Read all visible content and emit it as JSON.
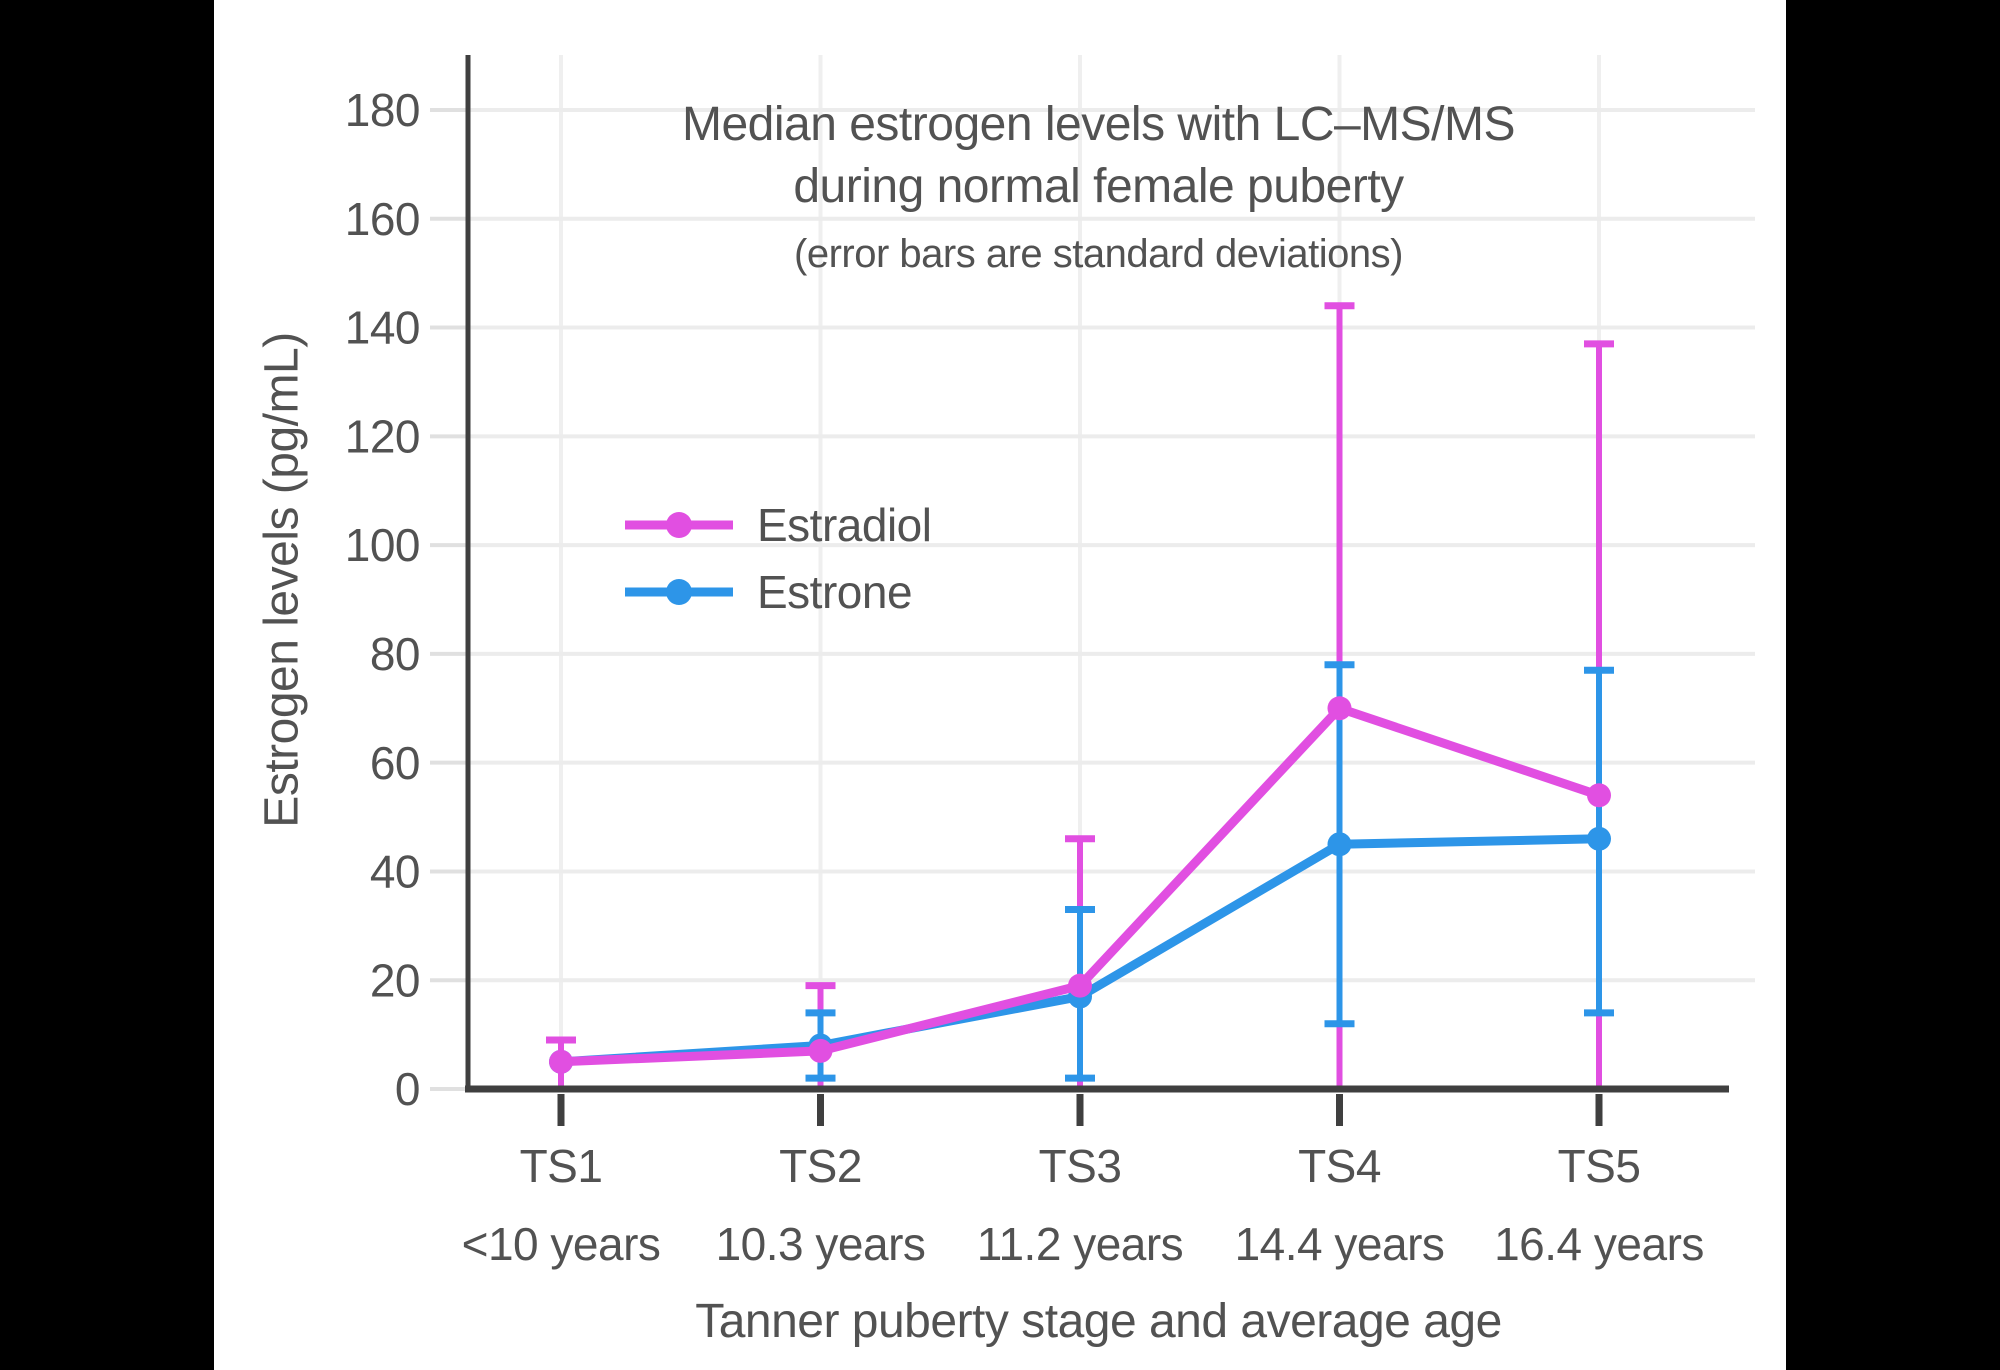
{
  "page": {
    "background": "#000000",
    "canvas_background": "#FFFFFF",
    "text_color": "#525252"
  },
  "chart_data": {
    "type": "line",
    "title_line1": "Median estrogen levels with LC–MS/MS",
    "title_line2": "during normal female puberty",
    "subtitle": "(error bars are standard deviations)",
    "xlabel": "Tanner puberty stage and average age",
    "ylabel": "Estrogen levels (pg/mL)",
    "ylim": [
      0,
      190
    ],
    "yticks": [
      0,
      20,
      40,
      60,
      80,
      100,
      120,
      140,
      160,
      180
    ],
    "grid": true,
    "legend_position": "inside upper-left",
    "categories": [
      "TS1",
      "TS2",
      "TS3",
      "TS4",
      "TS5"
    ],
    "category_sublabels": [
      "<10 years",
      "10.3 years",
      "11.2 years",
      "14.4 years",
      "16.4 years"
    ],
    "series": [
      {
        "name": "Estradiol",
        "color": "#E14FE1",
        "values": [
          5,
          7,
          19,
          70,
          54
        ],
        "error_low": [
          0,
          0,
          0,
          0,
          0
        ],
        "error_high": [
          9,
          19,
          46,
          144,
          137
        ],
        "error_low_cap_visible": [
          true,
          false,
          false,
          false,
          false
        ]
      },
      {
        "name": "Estrone",
        "color": "#2D95E8",
        "values": [
          5,
          8,
          17,
          45,
          46
        ],
        "error_low": [
          null,
          2,
          2,
          12,
          14
        ],
        "error_high": [
          null,
          14,
          33,
          78,
          77
        ],
        "error_low_cap_visible": [
          false,
          true,
          true,
          true,
          true
        ]
      }
    ],
    "colors": {
      "axis": "#3F3F3F",
      "grid": "#ECECEC",
      "y_tick": "#E0E0E0",
      "text": "#525252"
    }
  }
}
